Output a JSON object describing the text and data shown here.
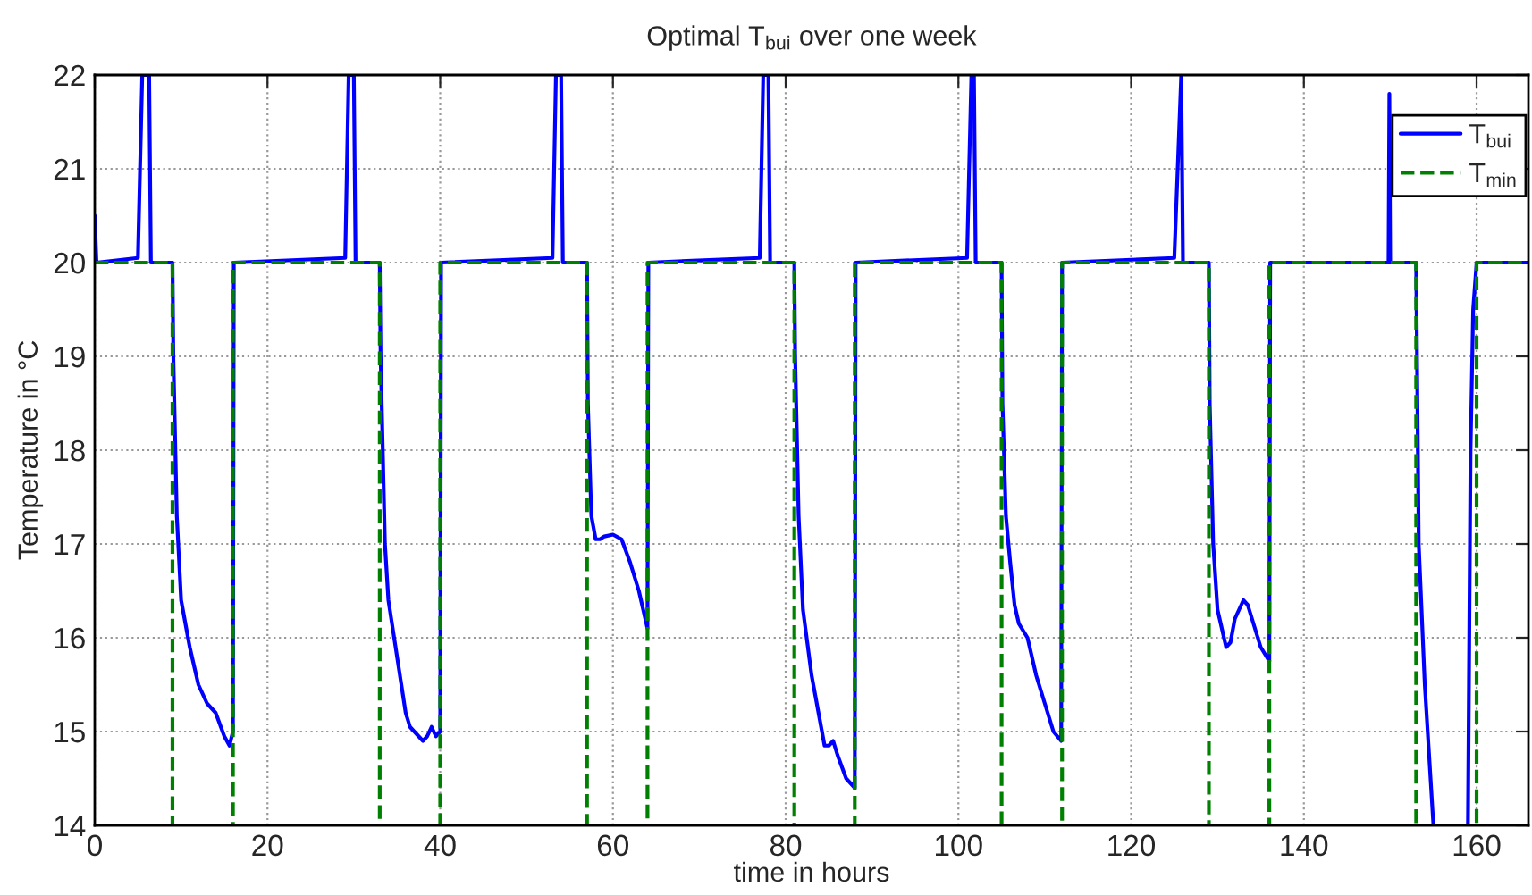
{
  "chart_data": {
    "type": "line",
    "title": "Optimal T$_{bui}$ over one week",
    "xlabel": "time in hours",
    "ylabel": "Temperature in °C",
    "xlim": [
      0,
      166
    ],
    "ylim": [
      14,
      22
    ],
    "xticks": [
      0,
      20,
      40,
      60,
      80,
      100,
      120,
      140,
      160
    ],
    "yticks": [
      14,
      15,
      16,
      17,
      18,
      19,
      20,
      21,
      22
    ],
    "grid": true,
    "legend": "top right",
    "series": [
      {
        "name": "T$_{bui}$",
        "color": "#0000ff",
        "line_style": "solid",
        "x": [
          0,
          0.2,
          5,
          5.5,
          6.3,
          6.5,
          9,
          9.1,
          9.5,
          10,
          11,
          12,
          13,
          14,
          15,
          15.6,
          16,
          16.1,
          29,
          29.4,
          30,
          30.2,
          33,
          33.1,
          33.6,
          34,
          35,
          36,
          36.5,
          37,
          38,
          38.5,
          39,
          39.5,
          40,
          40.1,
          53,
          53.4,
          54,
          54.2,
          57,
          57.1,
          57.5,
          58,
          58.5,
          59,
          60,
          61,
          62,
          63,
          64,
          64.1,
          77,
          77.4,
          78,
          78.2,
          81,
          81.1,
          81.5,
          82,
          83,
          84,
          84.5,
          85,
          85.5,
          86,
          87,
          88,
          88.1,
          101,
          101.5,
          101.8,
          102,
          105,
          105.1,
          105.5,
          106,
          106.5,
          107,
          108,
          109,
          110,
          111,
          111.9,
          112,
          125,
          125.8,
          126,
          129,
          129.1,
          129.5,
          130,
          131,
          131.5,
          132,
          133,
          133.5,
          134,
          135,
          136,
          136.1,
          149.8,
          149.9,
          150,
          153,
          153.3,
          154,
          155,
          159,
          159.3,
          159.6,
          160,
          166
        ],
        "values": [
          20.5,
          20,
          20.05,
          22,
          22,
          20,
          20,
          19,
          17.3,
          16.4,
          15.9,
          15.5,
          15.3,
          15.2,
          14.95,
          14.85,
          15,
          20,
          20.05,
          22,
          22,
          20,
          20,
          19,
          17,
          16.4,
          15.8,
          15.2,
          15.05,
          15,
          14.9,
          14.95,
          15.05,
          14.95,
          15,
          20,
          20.05,
          22,
          22,
          20,
          20,
          18.5,
          17.3,
          17.05,
          17.05,
          17.08,
          17.1,
          17.05,
          16.8,
          16.5,
          16.1,
          20,
          20.05,
          22,
          22,
          20,
          20,
          19,
          17.3,
          16.3,
          15.6,
          15.1,
          14.85,
          14.85,
          14.9,
          14.75,
          14.5,
          14.4,
          20,
          20.05,
          22,
          22,
          20,
          20,
          18.5,
          17.3,
          16.8,
          16.35,
          16.15,
          16,
          15.6,
          15.3,
          15,
          14.9,
          20,
          20.05,
          22,
          20,
          20,
          18.5,
          17,
          16.3,
          15.9,
          15.95,
          16.2,
          16.4,
          16.35,
          16.2,
          15.9,
          15.75,
          20,
          20,
          21.8,
          20,
          20,
          17,
          15.5,
          14,
          14,
          18,
          19.5,
          20,
          20
        ]
      },
      {
        "name": "T$_{min}$",
        "color": "#008000",
        "line_style": "dashed",
        "x": [
          0,
          9,
          9,
          16,
          16,
          33,
          33,
          40,
          40,
          57,
          57,
          64,
          64,
          81,
          81,
          88,
          88,
          105,
          105,
          112,
          112,
          129,
          129,
          136,
          136,
          153,
          153,
          160,
          160,
          166
        ],
        "values": [
          20,
          20,
          14,
          14,
          20,
          20,
          14,
          14,
          20,
          20,
          14,
          14,
          20,
          20,
          14,
          14,
          20,
          20,
          14,
          14,
          20,
          20,
          14,
          14,
          20,
          20,
          14,
          14,
          20,
          20
        ]
      }
    ]
  }
}
